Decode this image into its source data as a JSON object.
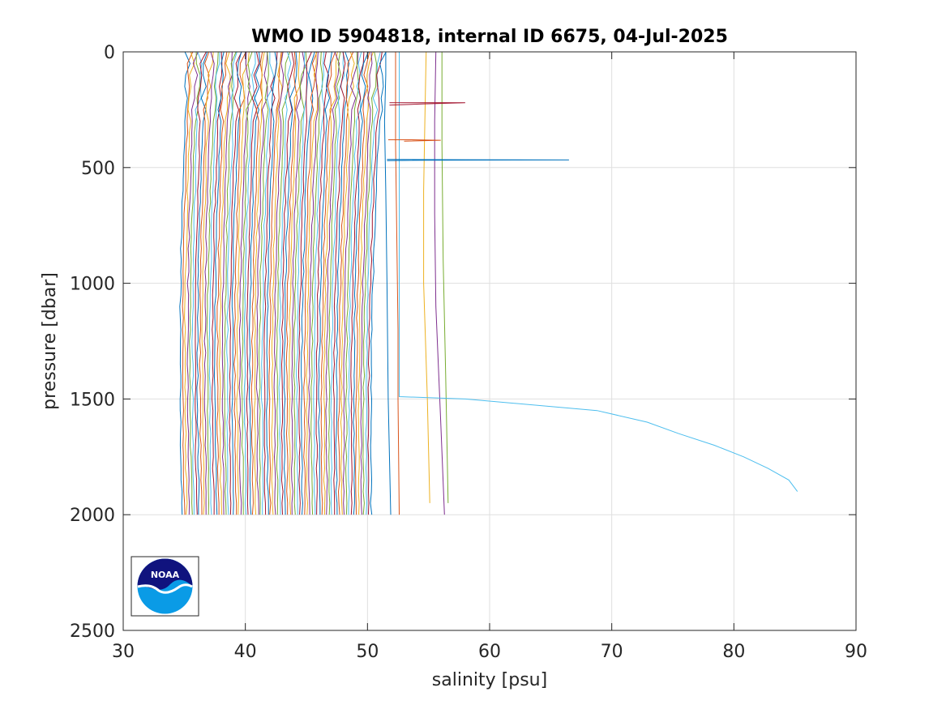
{
  "chart_data": {
    "type": "line",
    "title": "WMO ID 5904818, internal ID 6675, 04-Jul-2025",
    "xlabel": "salinity [psu]",
    "ylabel": "pressure [dbar]",
    "xlim": [
      30,
      90
    ],
    "ylim": [
      0,
      2500
    ],
    "y_reversed": true,
    "grid": true,
    "xticks": [
      "30",
      "40",
      "50",
      "60",
      "70",
      "80",
      "90"
    ],
    "yticks": [
      "0",
      "500",
      "1000",
      "1500",
      "2000",
      "2500"
    ],
    "logo": "NOAA",
    "colors": [
      "#0072BD",
      "#D95319",
      "#EDB120",
      "#7E2F8E",
      "#77AC30",
      "#4DBEEE",
      "#A2142F"
    ],
    "profile_family": {
      "count": 78,
      "surface_salinity_first": 35.3,
      "surface_salinity_last": 51.3,
      "deep_salinity_first": 34.8,
      "deep_salinity_last": 50.3,
      "pressure_bottom": 2000
    },
    "series": [
      {
        "values": [
          [
            51.5,
            0
          ],
          [
            51.5,
            100
          ],
          [
            51.4,
            300
          ],
          [
            51.5,
            600
          ],
          [
            51.6,
            1000
          ],
          [
            51.7,
            1500
          ],
          [
            51.9,
            2000
          ]
        ]
      },
      {
        "values": [
          [
            52.3,
            0
          ],
          [
            52.3,
            200
          ],
          [
            52.3,
            400
          ],
          [
            52.4,
            800
          ],
          [
            52.5,
            1200
          ],
          [
            52.5,
            1500
          ],
          [
            52.6,
            2000
          ]
        ]
      },
      {
        "values": [
          [
            54.8,
            0
          ],
          [
            54.7,
            300
          ],
          [
            54.6,
            600
          ],
          [
            54.6,
            1000
          ],
          [
            54.9,
            1500
          ],
          [
            55.1,
            1950
          ]
        ]
      },
      {
        "values": [
          [
            55.6,
            0
          ],
          [
            55.5,
            300
          ],
          [
            55.5,
            700
          ],
          [
            55.6,
            1100
          ],
          [
            56.0,
            1600
          ],
          [
            56.3,
            2000
          ]
        ]
      },
      {
        "values": [
          [
            56.1,
            0
          ],
          [
            56.1,
            400
          ],
          [
            56.2,
            900
          ],
          [
            56.4,
            1400
          ],
          [
            56.6,
            1950
          ]
        ]
      },
      {
        "values": [
          [
            52.6,
            0
          ],
          [
            52.6,
            500
          ],
          [
            52.6,
            1000
          ],
          [
            52.6,
            1490
          ],
          [
            58.0,
            1500
          ],
          [
            68.8,
            1550
          ],
          [
            72.9,
            1600
          ],
          [
            75.5,
            1650
          ],
          [
            78.4,
            1700
          ],
          [
            80.8,
            1750
          ],
          [
            82.8,
            1800
          ],
          [
            84.5,
            1850
          ],
          [
            85.2,
            1900
          ]
        ]
      },
      {
        "values": [
          [
            51.8,
            220
          ],
          [
            54.0,
            220
          ],
          [
            58.0,
            220
          ],
          [
            54.5,
            225
          ],
          [
            51.8,
            230
          ]
        ]
      },
      {
        "values": [
          [
            51.6,
            465
          ],
          [
            58.0,
            466
          ],
          [
            66.5,
            467
          ],
          [
            55.0,
            468
          ],
          [
            51.6,
            470
          ]
        ]
      },
      {
        "values": [
          [
            51.7,
            380
          ],
          [
            53.5,
            380
          ],
          [
            56.0,
            382
          ],
          [
            53.0,
            386
          ]
        ]
      }
    ]
  }
}
